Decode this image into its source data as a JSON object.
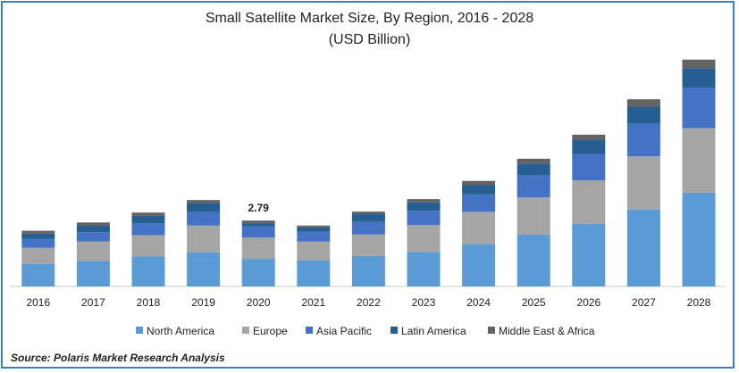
{
  "chart_data": {
    "type": "bar",
    "stacked": true,
    "title": "Small Satellite Market Size, By Region, 2016 - 2028",
    "subtitle": "(USD Billion)",
    "categories": [
      "2016",
      "2017",
      "2018",
      "2019",
      "2020",
      "2021",
      "2022",
      "2023",
      "2024",
      "2025",
      "2026",
      "2027",
      "2028"
    ],
    "series": [
      {
        "name": "North America",
        "color": "#5b9bd5",
        "values": [
          0.95,
          1.08,
          1.28,
          1.45,
          1.17,
          1.11,
          1.29,
          1.46,
          1.8,
          2.19,
          2.65,
          3.26,
          3.98
        ]
      },
      {
        "name": "Europe",
        "color": "#a5a5a5",
        "values": [
          0.69,
          0.83,
          0.89,
          1.13,
          0.9,
          0.79,
          0.91,
          1.14,
          1.36,
          1.58,
          1.84,
          2.25,
          2.73
        ]
      },
      {
        "name": "Asia Pacific",
        "color": "#4472c4",
        "values": [
          0.37,
          0.39,
          0.51,
          0.57,
          0.47,
          0.42,
          0.53,
          0.6,
          0.75,
          0.94,
          1.12,
          1.38,
          1.72
        ]
      },
      {
        "name": "Latin America",
        "color": "#255e91",
        "values": [
          0.23,
          0.27,
          0.31,
          0.38,
          0.14,
          0.18,
          0.33,
          0.36,
          0.38,
          0.48,
          0.59,
          0.73,
          0.82
        ]
      },
      {
        "name": "Middle East & Africa",
        "color": "#636363",
        "values": [
          0.12,
          0.14,
          0.14,
          0.13,
          0.11,
          0.08,
          0.11,
          0.14,
          0.18,
          0.22,
          0.23,
          0.31,
          0.36
        ]
      }
    ],
    "annotations": [
      {
        "category": "2020",
        "text": "2.79"
      }
    ],
    "ylim": [
      0,
      11
    ],
    "legend": "bottom",
    "grid": false
  },
  "source": "Source: Polaris  Market Research Analysis"
}
